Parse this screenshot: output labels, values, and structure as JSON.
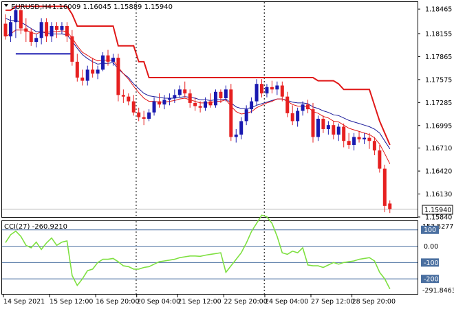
{
  "main_chart": {
    "symbol_label": "EURUSD,H4",
    "ohlc_text": "1.16009 1.16045 1.15889 1.15940",
    "current_price_label": "1.15940",
    "price_axis_labels": [
      "1.18465",
      "1.18155",
      "1.17865",
      "1.17575",
      "1.17285",
      "1.16995",
      "1.16710",
      "1.16420",
      "1.16130",
      "1.15840"
    ]
  },
  "indicator": {
    "name_label": "CCI(27) -260.9210",
    "top_value_label": "153.5277",
    "bottom_value_label": "-291.8463",
    "level_labels": [
      "100",
      "0.00",
      "-100",
      "-200"
    ],
    "level_values": [
      100,
      0,
      -100,
      -200
    ]
  },
  "time_axis_labels": [
    "14 Sep 2021",
    "15 Sep 12:00",
    "16 Sep 20:00",
    "20 Sep 04:00",
    "21 Sep 12:00",
    "22 Sep 20:00",
    "24 Sep 04:00",
    "27 Sep 12:00",
    "28 Sep 20:00"
  ],
  "colors": {
    "bull": "#1a1ab0",
    "bear": "#e62020",
    "ma_blue": "#1a1a9a",
    "ma_red": "#e01818",
    "stop_line": "#e01818",
    "cci_line": "#7ee040",
    "level_line": "#4a6fa0",
    "level_label_bg": "#4a6fa0",
    "grid": "#000000"
  },
  "chart_data": {
    "type": "candlestick",
    "symbol": "EURUSD",
    "timeframe": "H4",
    "ylim": [
      1.1584,
      1.1851
    ],
    "candles": [
      [
        1.1828,
        1.184,
        1.1808,
        1.1812
      ],
      [
        1.1812,
        1.1838,
        1.1805,
        1.183
      ],
      [
        1.183,
        1.185,
        1.181,
        1.1845
      ],
      [
        1.1845,
        1.1848,
        1.1815,
        1.1822
      ],
      [
        1.1822,
        1.1835,
        1.1805,
        1.1818
      ],
      [
        1.1818,
        1.1822,
        1.18,
        1.1805
      ],
      [
        1.1805,
        1.1815,
        1.1798,
        1.181
      ],
      [
        1.181,
        1.1835,
        1.1802,
        1.183
      ],
      [
        1.183,
        1.1835,
        1.1805,
        1.1812
      ],
      [
        1.1812,
        1.183,
        1.1805,
        1.1825
      ],
      [
        1.1825,
        1.183,
        1.181,
        1.182
      ],
      [
        1.182,
        1.183,
        1.1815,
        1.1825
      ],
      [
        1.1825,
        1.183,
        1.1805,
        1.1812
      ],
      [
        1.1812,
        1.182,
        1.1775,
        1.178
      ],
      [
        1.178,
        1.179,
        1.1755,
        1.176
      ],
      [
        1.176,
        1.177,
        1.175,
        1.1756
      ],
      [
        1.1756,
        1.1775,
        1.175,
        1.177
      ],
      [
        1.177,
        1.1785,
        1.176,
        1.1765
      ],
      [
        1.1765,
        1.1775,
        1.1758,
        1.177
      ],
      [
        1.177,
        1.1792,
        1.1768,
        1.1788
      ],
      [
        1.1788,
        1.1795,
        1.1775,
        1.178
      ],
      [
        1.178,
        1.179,
        1.1775,
        1.1785
      ],
      [
        1.1785,
        1.179,
        1.173,
        1.1738
      ],
      [
        1.1738,
        1.1745,
        1.1728,
        1.1736
      ],
      [
        1.1736,
        1.174,
        1.1725,
        1.173
      ],
      [
        1.173,
        1.1738,
        1.1712,
        1.1716
      ],
      [
        1.1716,
        1.1722,
        1.1705,
        1.171
      ],
      [
        1.171,
        1.1718,
        1.17,
        1.1708
      ],
      [
        1.1708,
        1.172,
        1.1705,
        1.1716
      ],
      [
        1.1716,
        1.1735,
        1.1712,
        1.173
      ],
      [
        1.173,
        1.174,
        1.1722,
        1.1726
      ],
      [
        1.1726,
        1.1738,
        1.172,
        1.1732
      ],
      [
        1.1732,
        1.174,
        1.1725,
        1.1734
      ],
      [
        1.1734,
        1.1745,
        1.1728,
        1.1738
      ],
      [
        1.1738,
        1.175,
        1.1735,
        1.1745
      ],
      [
        1.1745,
        1.1755,
        1.1735,
        1.174
      ],
      [
        1.174,
        1.1745,
        1.1722,
        1.1728
      ],
      [
        1.1728,
        1.1735,
        1.1718,
        1.1724
      ],
      [
        1.1724,
        1.173,
        1.1716,
        1.1722
      ],
      [
        1.1722,
        1.1735,
        1.1718,
        1.173
      ],
      [
        1.173,
        1.174,
        1.1722,
        1.1725
      ],
      [
        1.1725,
        1.1745,
        1.1722,
        1.1742
      ],
      [
        1.1742,
        1.1745,
        1.1728,
        1.1734
      ],
      [
        1.1734,
        1.175,
        1.173,
        1.1745
      ],
      [
        1.1745,
        1.1752,
        1.168,
        1.1685
      ],
      [
        1.1685,
        1.1695,
        1.1678,
        1.1688
      ],
      [
        1.1688,
        1.171,
        1.1682,
        1.1705
      ],
      [
        1.1705,
        1.1725,
        1.17,
        1.172
      ],
      [
        1.172,
        1.1735,
        1.1715,
        1.173
      ],
      [
        1.173,
        1.1758,
        1.1725,
        1.1752
      ],
      [
        1.1752,
        1.1758,
        1.1735,
        1.174
      ],
      [
        1.174,
        1.1752,
        1.1735,
        1.1748
      ],
      [
        1.1748,
        1.1756,
        1.174,
        1.1745
      ],
      [
        1.1745,
        1.1755,
        1.1738,
        1.175
      ],
      [
        1.175,
        1.1755,
        1.173,
        1.1736
      ],
      [
        1.1736,
        1.1742,
        1.171,
        1.1715
      ],
      [
        1.1715,
        1.1725,
        1.17,
        1.1705
      ],
      [
        1.1705,
        1.1722,
        1.1698,
        1.1718
      ],
      [
        1.1718,
        1.173,
        1.1712,
        1.1726
      ],
      [
        1.1726,
        1.1732,
        1.1715,
        1.172
      ],
      [
        1.172,
        1.1728,
        1.1678,
        1.1685
      ],
      [
        1.1685,
        1.1712,
        1.168,
        1.1708
      ],
      [
        1.1708,
        1.1712,
        1.169,
        1.1695
      ],
      [
        1.1695,
        1.1705,
        1.1688,
        1.17
      ],
      [
        1.17,
        1.1705,
        1.1682,
        1.1688
      ],
      [
        1.1688,
        1.1702,
        1.168,
        1.1698
      ],
      [
        1.1698,
        1.1702,
        1.1672,
        1.168
      ],
      [
        1.168,
        1.169,
        1.167,
        1.1675
      ],
      [
        1.1675,
        1.169,
        1.1668,
        1.1685
      ],
      [
        1.1685,
        1.1692,
        1.1678,
        1.1682
      ],
      [
        1.1682,
        1.169,
        1.1676,
        1.1684
      ],
      [
        1.1684,
        1.169,
        1.167,
        1.168
      ],
      [
        1.168,
        1.1685,
        1.1662,
        1.1668
      ],
      [
        1.1668,
        1.1675,
        1.164,
        1.1645
      ],
      [
        1.1645,
        1.165,
        1.159,
        1.1598
      ],
      [
        1.1601,
        1.1605,
        1.1589,
        1.1594
      ]
    ],
    "series": [
      {
        "values": [
          1.1835,
          1.1832,
          1.1832,
          1.183,
          1.1826,
          1.1822,
          1.1818,
          1.1818,
          1.1816,
          1.1815,
          1.1815,
          1.1815,
          1.1814,
          1.1806,
          1.1797,
          1.1789,
          1.1784,
          1.178,
          1.1777,
          1.1778,
          1.1778,
          1.1779,
          1.1771,
          1.1765,
          1.176,
          1.1752,
          1.1746,
          1.174,
          1.1737,
          1.1736,
          1.1735,
          1.1734,
          1.1734,
          1.1734,
          1.1735,
          1.1736,
          1.1735,
          1.1734,
          1.1732,
          1.1732,
          1.1731,
          1.1732,
          1.1732,
          1.1733,
          1.1728,
          1.1723,
          1.1721,
          1.1721,
          1.1722,
          1.1725,
          1.1727,
          1.1729,
          1.1731,
          1.1733,
          1.1733,
          1.1731,
          1.1729,
          1.1728,
          1.1728,
          1.1727,
          1.1723,
          1.1721,
          1.1718,
          1.1716,
          1.1713,
          1.1712,
          1.1709,
          1.1706,
          1.1704,
          1.1702,
          1.17,
          1.1698,
          1.1695,
          1.169,
          1.168,
          1.167
        ]
      },
      {
        "values": [
          1.1812,
          1.1815,
          1.182,
          1.182,
          1.182,
          1.1817,
          1.1815,
          1.1818,
          1.1817,
          1.1818,
          1.1818,
          1.1819,
          1.1818,
          1.181,
          1.18,
          1.1792,
          1.1788,
          1.1784,
          1.1781,
          1.1782,
          1.1782,
          1.1782,
          1.1773,
          1.1765,
          1.1758,
          1.1749,
          1.1741,
          1.1734,
          1.173,
          1.173,
          1.1729,
          1.1729,
          1.173,
          1.1731,
          1.1733,
          1.1734,
          1.1732,
          1.173,
          1.1728,
          1.1728,
          1.1728,
          1.173,
          1.173,
          1.1732,
          1.1724,
          1.1717,
          1.1714,
          1.1715,
          1.1717,
          1.1722,
          1.1725,
          1.1728,
          1.173,
          1.1733,
          1.1733,
          1.173,
          1.1726,
          1.1724,
          1.1724,
          1.1723,
          1.1717,
          1.1715,
          1.1711,
          1.1709,
          1.1705,
          1.1704,
          1.17,
          1.1696,
          1.1694,
          1.1692,
          1.169,
          1.1688,
          1.1684,
          1.1676,
          1.1664,
          1.1651
        ]
      },
      {
        "values": [
          1.1845,
          1.1845,
          1.185,
          1.185,
          1.185,
          1.185,
          1.185,
          1.185,
          1.185,
          1.185,
          1.185,
          1.185,
          1.185,
          1.184,
          1.1825,
          1.1825,
          1.1825,
          1.1825,
          1.1825,
          1.1825,
          1.1825,
          1.1825,
          1.18,
          1.18,
          1.18,
          1.18,
          1.178,
          1.178,
          1.176,
          1.176,
          1.176,
          1.176,
          1.176,
          1.176,
          1.176,
          1.176,
          1.176,
          1.176,
          1.176,
          1.176,
          1.176,
          1.176,
          1.176,
          1.176,
          1.176,
          1.176,
          1.176,
          1.176,
          1.176,
          1.176,
          1.176,
          1.176,
          1.176,
          1.176,
          1.176,
          1.176,
          1.176,
          1.176,
          1.176,
          1.176,
          1.176,
          1.1756,
          1.1756,
          1.1756,
          1.1756,
          1.1752,
          1.1745,
          1.1745,
          1.1745,
          1.1745,
          1.1745,
          1.1745,
          1.1725,
          1.1705,
          1.169,
          1.1675
        ]
      },
      {
        "values": [
          1.179,
          1.179,
          1.179,
          1.179,
          1.179,
          1.179,
          1.179,
          1.179,
          1.179,
          1.179,
          1.179,
          1.179
        ]
      },
      {
        "values": [
          22,
          70,
          92,
          60,
          5,
          -10,
          25,
          -20,
          20,
          50,
          5,
          25,
          32,
          -180,
          -240,
          -200,
          -150,
          -140,
          -100,
          -80,
          -80,
          -75,
          -95,
          -120,
          -125,
          -140,
          -140,
          -130,
          -125,
          -110,
          -95,
          -90,
          -85,
          -80,
          -70,
          -65,
          -60,
          -60,
          -62,
          -55,
          -50,
          -45,
          -40,
          -160,
          -120,
          -80,
          -40,
          20,
          90,
          140,
          190,
          180,
          140,
          60,
          -40,
          -50,
          -30,
          -40,
          -10,
          -115,
          -120,
          -120,
          -130,
          -115,
          -100,
          -110,
          -100,
          -95,
          -90,
          -80,
          -75,
          -70,
          -90,
          -160,
          -200,
          -261
        ]
      }
    ],
    "cci_ylim": [
      -291.8463,
      153.5277
    ]
  }
}
